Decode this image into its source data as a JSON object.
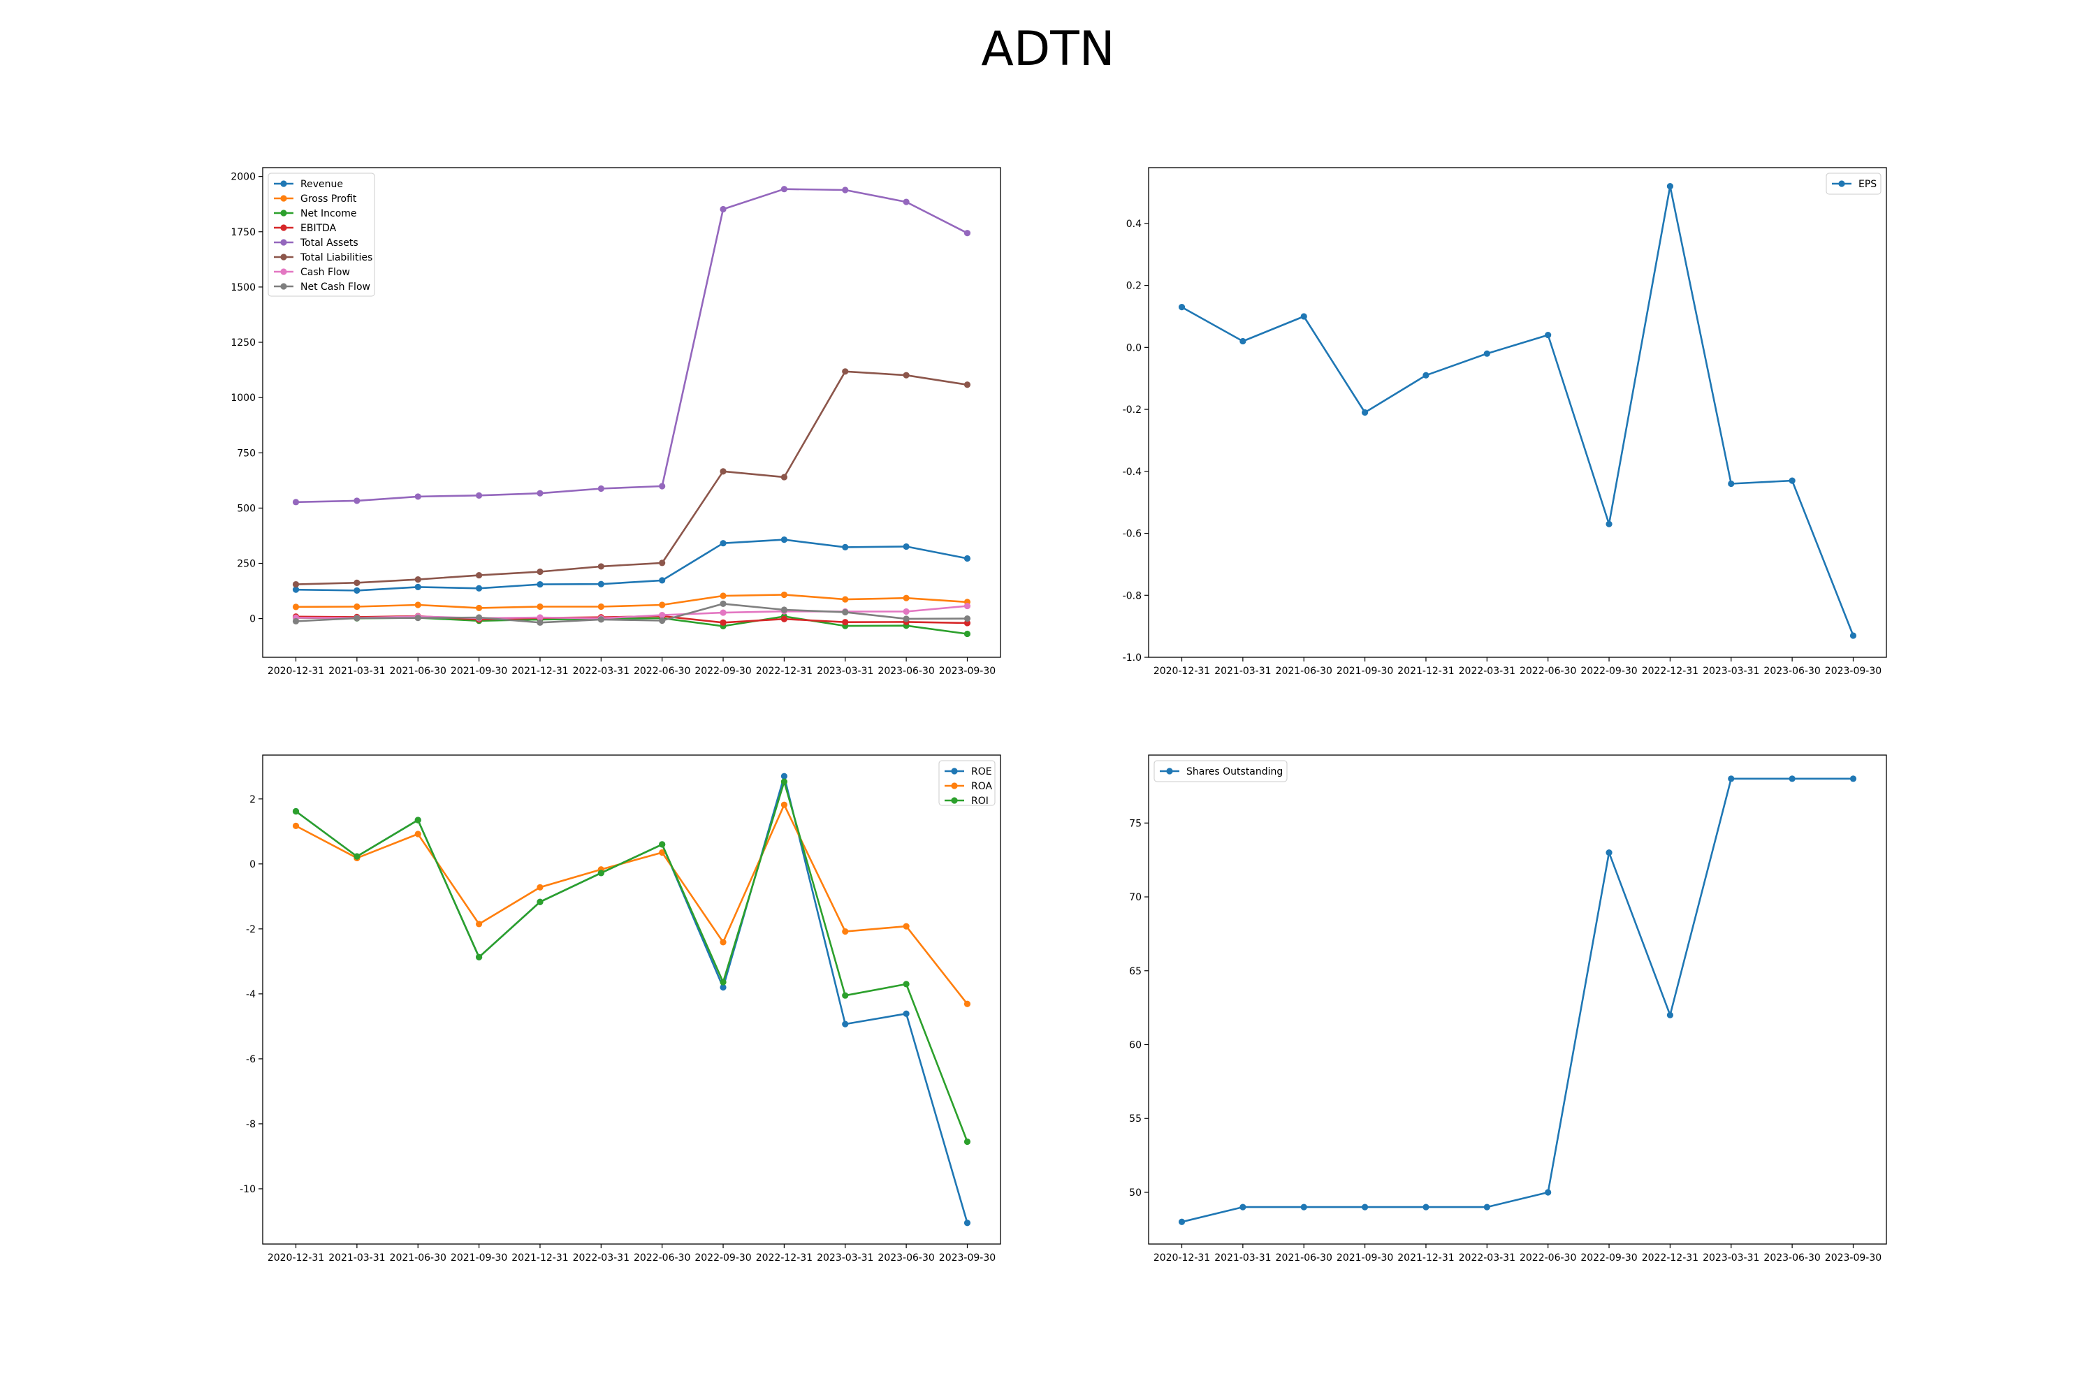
{
  "figure": {
    "title": "ADTN"
  },
  "chart_data": [
    {
      "type": "line",
      "title": "",
      "xlabel": "",
      "ylabel": "",
      "categories": [
        "2020-12-31",
        "2021-03-31",
        "2021-06-30",
        "2021-09-30",
        "2021-12-31",
        "2022-03-31",
        "2022-06-30",
        "2022-09-30",
        "2022-12-31",
        "2023-03-31",
        "2023-06-30",
        "2023-09-30"
      ],
      "ylim": [
        -175,
        2040
      ],
      "yticks": [
        0,
        250,
        500,
        750,
        1000,
        1250,
        1500,
        1750,
        2000
      ],
      "grid": false,
      "legend_position": "upper-left",
      "series": [
        {
          "name": "Revenue",
          "color": "#1f77b4",
          "values": [
            131,
            127,
            143,
            137,
            155,
            156,
            173,
            341,
            357,
            323,
            326,
            272
          ]
        },
        {
          "name": "Gross Profit",
          "color": "#ff7f0e",
          "values": [
            53,
            54,
            62,
            48,
            54,
            54,
            62,
            103,
            108,
            87,
            93,
            75
          ]
        },
        {
          "name": "Net Income",
          "color": "#2ca02c",
          "values": [
            4,
            1,
            4,
            -10,
            -4,
            -1,
            2,
            -34,
            10,
            -33,
            -32,
            -69
          ]
        },
        {
          "name": "EBITDA",
          "color": "#d62728",
          "values": [
            9,
            7,
            11,
            -4,
            3,
            6,
            11,
            -18,
            -2,
            -16,
            -15,
            -20
          ]
        },
        {
          "name": "Total Assets",
          "color": "#9467bd",
          "values": [
            527,
            533,
            552,
            557,
            567,
            588,
            599,
            1852,
            1943,
            1939,
            1885,
            1744
          ]
        },
        {
          "name": "Total Liabilities",
          "color": "#8c564b",
          "values": [
            155,
            162,
            177,
            196,
            212,
            236,
            252,
            666,
            640,
            1118,
            1101,
            1058
          ]
        },
        {
          "name": "Cash Flow",
          "color": "#e377c2",
          "values": [
            4,
            3,
            10,
            2,
            5,
            1,
            16,
            27,
            33,
            32,
            32,
            57
          ]
        },
        {
          "name": "Net Cash Flow",
          "color": "#7f7f7f",
          "values": [
            -12,
            2,
            3,
            5,
            -18,
            -4,
            -9,
            67,
            40,
            29,
            -1,
            0
          ]
        }
      ]
    },
    {
      "type": "line",
      "title": "",
      "xlabel": "",
      "ylabel": "",
      "categories": [
        "2020-12-31",
        "2021-03-31",
        "2021-06-30",
        "2021-09-30",
        "2021-12-31",
        "2022-03-31",
        "2022-06-30",
        "2022-09-30",
        "2022-12-31",
        "2023-03-31",
        "2023-06-30",
        "2023-09-30"
      ],
      "ylim": [
        -1.0,
        0.58
      ],
      "yticks": [
        -1.0,
        -0.8,
        -0.6,
        -0.4,
        -0.2,
        0.0,
        0.2,
        0.4
      ],
      "ytick_decimals": 1,
      "grid": false,
      "legend_position": "upper-right",
      "series": [
        {
          "name": "EPS",
          "color": "#1f77b4",
          "values": [
            0.13,
            0.02,
            0.1,
            -0.21,
            -0.09,
            -0.02,
            0.04,
            -0.57,
            0.52,
            -0.44,
            -0.43,
            -0.93
          ]
        }
      ]
    },
    {
      "type": "line",
      "title": "",
      "xlabel": "",
      "ylabel": "",
      "categories": [
        "2020-12-31",
        "2021-03-31",
        "2021-06-30",
        "2021-09-30",
        "2021-12-31",
        "2022-03-31",
        "2022-06-30",
        "2022-09-30",
        "2022-12-31",
        "2023-03-31",
        "2023-06-30",
        "2023-09-30"
      ],
      "ylim": [
        -11.7,
        3.35
      ],
      "yticks": [
        -10,
        -8,
        -6,
        -4,
        -2,
        0,
        2
      ],
      "grid": false,
      "legend_position": "upper-right",
      "series": [
        {
          "name": "ROE",
          "color": "#1f77b4",
          "values": [
            1.62,
            0.23,
            1.35,
            -2.87,
            -1.17,
            -0.28,
            0.6,
            -3.8,
            2.7,
            -4.93,
            -4.61,
            -11.05
          ]
        },
        {
          "name": "ROA",
          "color": "#ff7f0e",
          "values": [
            1.17,
            0.18,
            0.92,
            -1.85,
            -0.72,
            -0.17,
            0.35,
            -2.41,
            1.82,
            -2.08,
            -1.92,
            -4.31
          ]
        },
        {
          "name": "ROI",
          "color": "#2ca02c",
          "values": [
            1.62,
            0.23,
            1.35,
            -2.87,
            -1.17,
            -0.28,
            0.6,
            -3.64,
            2.53,
            -4.05,
            -3.7,
            -8.55
          ]
        }
      ]
    },
    {
      "type": "line",
      "title": "",
      "xlabel": "",
      "ylabel": "",
      "categories": [
        "2020-12-31",
        "2021-03-31",
        "2021-06-30",
        "2021-09-30",
        "2021-12-31",
        "2022-03-31",
        "2022-06-30",
        "2022-09-30",
        "2022-12-31",
        "2023-03-31",
        "2023-06-30",
        "2023-09-30"
      ],
      "ylim": [
        46.5,
        79.6
      ],
      "yticks": [
        50,
        55,
        60,
        65,
        70,
        75
      ],
      "grid": false,
      "legend_position": "upper-left",
      "series": [
        {
          "name": "Shares Outstanding",
          "color": "#1f77b4",
          "values": [
            48,
            49,
            49,
            49,
            49,
            49,
            50,
            73,
            62,
            78,
            78,
            78
          ]
        }
      ]
    }
  ]
}
